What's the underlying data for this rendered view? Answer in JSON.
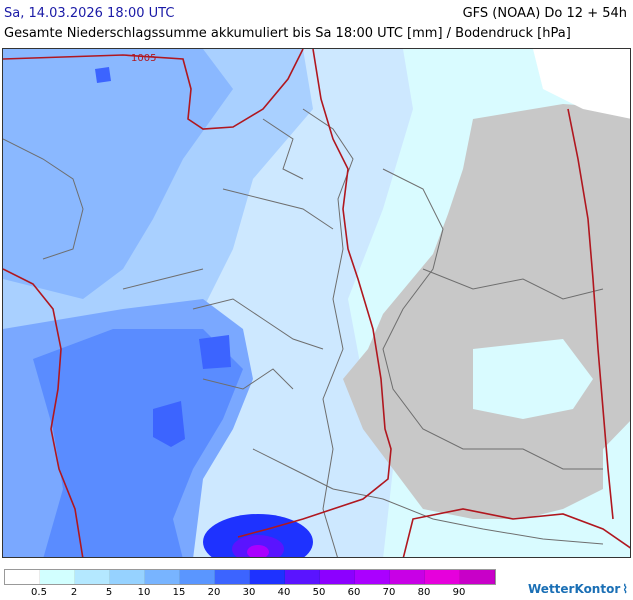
{
  "header": {
    "date": "Sa, 14.03.2026 18:00 UTC",
    "model": "GFS (NOAA) Do 12 + 54h",
    "title": "Gesamte Niederschlagssumme akkumuliert bis Sa 18:00 UTC [mm] / Bodendruck [hPa]"
  },
  "map": {
    "isobar_label": "1005",
    "colors": {
      "land_dry": "#c8c8c8",
      "isobar": "#b0171f",
      "border": "#6e6e6e"
    }
  },
  "legend": {
    "ticks": [
      "0.5",
      "2",
      "5",
      "10",
      "15",
      "20",
      "30",
      "40",
      "50",
      "60",
      "70",
      "80",
      "90"
    ],
    "colors": [
      "#ffffff",
      "#d2ffff",
      "#b4e8ff",
      "#96d2ff",
      "#78b4ff",
      "#5a96ff",
      "#3c64ff",
      "#1e32ff",
      "#5a14ff",
      "#8c00ff",
      "#aa00ff",
      "#c800e6",
      "#e600dc",
      "#c800c8"
    ]
  },
  "brand": {
    "name": "WetterKontor",
    "mark": "⌇"
  }
}
